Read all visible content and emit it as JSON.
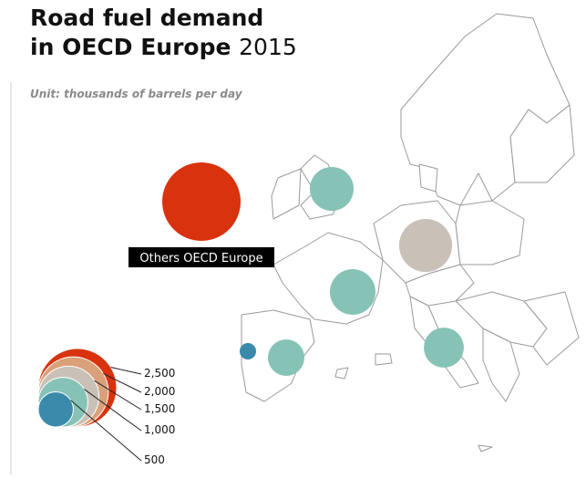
{
  "header": {
    "title_bold": "Road fuel demand",
    "title_line2_bold": "in OECD Europe",
    "title_year": "2015",
    "subtitle": "Unit: thousands of barrels per day"
  },
  "bubbles": [
    {
      "value": 2500,
      "color": "#d9320e",
      "label": "Others OECD Europe"
    },
    {
      "value": 780,
      "color": "#86c3b6"
    },
    {
      "value": 1140,
      "color": "#c9c1b8"
    },
    {
      "value": 845,
      "color": "#86c3b6"
    },
    {
      "value": 540,
      "color": "#86c3b6"
    },
    {
      "value": 110,
      "color": "#3a8aab"
    },
    {
      "value": 650,
      "color": "#86c3b6"
    }
  ],
  "legend": [
    {
      "value": 2500,
      "label": "2,500",
      "color": "#d9320e"
    },
    {
      "value": 2000,
      "label": "2,000",
      "color": "#d9a07a"
    },
    {
      "value": 1500,
      "label": "1,500",
      "color": "#c9c1b8"
    },
    {
      "value": 1000,
      "label": "1,000",
      "color": "#86c3b6"
    },
    {
      "value": 500,
      "label": "500",
      "color": "#3a8aab"
    }
  ]
}
